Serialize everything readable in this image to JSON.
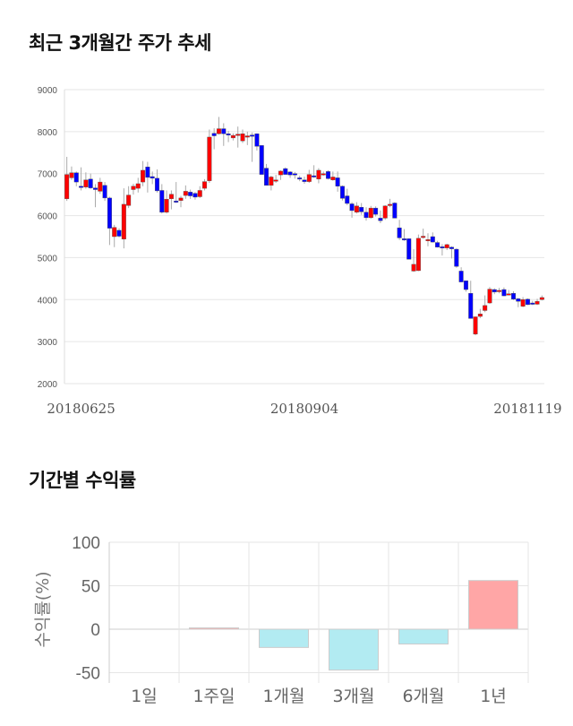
{
  "titles": {
    "price_trend": "최근 3개월간 주가 추세",
    "returns": "기간별 수익률"
  },
  "colors": {
    "up": "#ff0000",
    "down": "#0000ff",
    "wick": "#aaaaaa",
    "pos_bar": "#ffa6a6",
    "neg_bar": "#b2ebf2",
    "grid": "#e6e6e6"
  },
  "chart_data": [
    {
      "type": "candlestick",
      "title": "최근 3개월간 주가 추세",
      "ylim": [
        2000,
        9000
      ],
      "yticks": [
        "9000",
        "8000",
        "7000",
        "6000",
        "5000",
        "4000",
        "3000",
        "2000"
      ],
      "xticks": [
        {
          "index": 3,
          "label": "20180625"
        },
        {
          "index": 50,
          "label": "20180904"
        },
        {
          "index": 97,
          "label": "20181119"
        }
      ],
      "candles_ohlc": [
        [
          6400,
          7400,
          6350,
          6980
        ],
        [
          6900,
          7170,
          6850,
          7020
        ],
        [
          7020,
          7050,
          6700,
          6800
        ],
        [
          6700,
          7150,
          6600,
          6680
        ],
        [
          6680,
          7030,
          6640,
          6850
        ],
        [
          6870,
          7000,
          6640,
          6660
        ],
        [
          6660,
          6750,
          6200,
          6620
        ],
        [
          6580,
          6900,
          6520,
          6800
        ],
        [
          6720,
          6800,
          6350,
          6420
        ],
        [
          6420,
          6450,
          5300,
          5700
        ],
        [
          5500,
          5780,
          5250,
          5720
        ],
        [
          5650,
          5700,
          5480,
          5510
        ],
        [
          5440,
          6650,
          5220,
          6270
        ],
        [
          6240,
          6700,
          6180,
          6490
        ],
        [
          6620,
          6760,
          6500,
          6700
        ],
        [
          6650,
          6900,
          6550,
          6760
        ],
        [
          6800,
          7300,
          6700,
          7080
        ],
        [
          7160,
          7280,
          6550,
          6910
        ],
        [
          6930,
          7050,
          6750,
          6890
        ],
        [
          6890,
          7100,
          6550,
          6590
        ],
        [
          6600,
          6750,
          6050,
          6080
        ],
        [
          6080,
          6600,
          6050,
          6390
        ],
        [
          6400,
          6600,
          6150,
          6510
        ],
        [
          6350,
          6800,
          6300,
          6330
        ],
        [
          6360,
          6470,
          6200,
          6420
        ],
        [
          6480,
          6720,
          6400,
          6580
        ],
        [
          6560,
          6620,
          6400,
          6470
        ],
        [
          6530,
          6560,
          6380,
          6440
        ],
        [
          6450,
          6700,
          6420,
          6600
        ],
        [
          6650,
          6870,
          6600,
          6810
        ],
        [
          6830,
          8050,
          6780,
          7870
        ],
        [
          7960,
          8080,
          7580,
          7900
        ],
        [
          7950,
          8350,
          7930,
          8070
        ],
        [
          8070,
          8200,
          7660,
          7950
        ],
        [
          7950,
          8020,
          7750,
          7920
        ],
        [
          7850,
          7960,
          7790,
          7910
        ],
        [
          7920,
          8120,
          7620,
          7940
        ],
        [
          7780,
          8050,
          7730,
          7950
        ],
        [
          7880,
          8000,
          7680,
          7900
        ],
        [
          7920,
          7980,
          7280,
          7910
        ],
        [
          7950,
          7960,
          7550,
          7650
        ],
        [
          7670,
          7670,
          6980,
          6980
        ],
        [
          7130,
          7230,
          6720,
          6720
        ],
        [
          6720,
          6950,
          6600,
          6920
        ],
        [
          6830,
          6970,
          6780,
          6850
        ],
        [
          6970,
          7080,
          6850,
          7060
        ],
        [
          7120,
          7150,
          6980,
          6980
        ],
        [
          7040,
          7060,
          6900,
          6970
        ],
        [
          7000,
          7040,
          6880,
          6970
        ],
        [
          6900,
          6950,
          6820,
          6880
        ],
        [
          6850,
          6930,
          6760,
          6810
        ],
        [
          6810,
          7090,
          6780,
          6980
        ],
        [
          6950,
          7200,
          6900,
          6920
        ],
        [
          6870,
          7130,
          6770,
          7080
        ],
        [
          7000,
          7050,
          6950,
          7000
        ],
        [
          7050,
          7080,
          6860,
          6880
        ],
        [
          6850,
          7050,
          6830,
          6920
        ],
        [
          6900,
          7050,
          6570,
          6700
        ],
        [
          6700,
          6720,
          6360,
          6410
        ],
        [
          6470,
          6640,
          6250,
          6290
        ],
        [
          6280,
          6320,
          5950,
          6120
        ],
        [
          6080,
          6320,
          6050,
          6230
        ],
        [
          6200,
          6300,
          6020,
          6090
        ],
        [
          6080,
          6200,
          5880,
          5950
        ],
        [
          5950,
          6230,
          5930,
          6180
        ],
        [
          6180,
          6220,
          5980,
          6030
        ],
        [
          5940,
          6120,
          5820,
          5880
        ],
        [
          5940,
          6250,
          5900,
          6230
        ],
        [
          6240,
          6400,
          6200,
          6270
        ],
        [
          6300,
          6320,
          5940,
          5940
        ],
        [
          5710,
          5900,
          5420,
          5470
        ],
        [
          5450,
          5680,
          5400,
          5430
        ],
        [
          5450,
          5450,
          4960,
          4960
        ],
        [
          4680,
          5200,
          4660,
          4840
        ],
        [
          4690,
          5550,
          4680,
          5460
        ],
        [
          5480,
          5690,
          5450,
          5510
        ],
        [
          5430,
          5580,
          5270,
          5430
        ],
        [
          5500,
          5600,
          5360,
          5370
        ],
        [
          5360,
          5400,
          5240,
          5250
        ],
        [
          5260,
          5320,
          5050,
          5230
        ],
        [
          5230,
          5330,
          5180,
          5310
        ],
        [
          5250,
          5270,
          4980,
          5210
        ],
        [
          5200,
          5220,
          4760,
          4790
        ],
        [
          4680,
          4770,
          4420,
          4420
        ],
        [
          4450,
          4450,
          4190,
          4240
        ],
        [
          4150,
          4450,
          3550,
          3550
        ],
        [
          3180,
          3600,
          3150,
          3590
        ],
        [
          3600,
          3780,
          3560,
          3660
        ],
        [
          3740,
          4100,
          3700,
          3860
        ],
        [
          3920,
          4300,
          3900,
          4250
        ],
        [
          4240,
          4270,
          4130,
          4180
        ],
        [
          4190,
          4280,
          4150,
          4220
        ],
        [
          4240,
          4290,
          4080,
          4090
        ],
        [
          4140,
          4230,
          4100,
          4140
        ],
        [
          4150,
          4200,
          3990,
          4010
        ],
        [
          4020,
          4040,
          3820,
          3960
        ],
        [
          3840,
          4060,
          3820,
          4000
        ],
        [
          4010,
          4030,
          3870,
          3880
        ],
        [
          3920,
          3970,
          3870,
          3900
        ],
        [
          3890,
          4020,
          3870,
          3960
        ],
        [
          4000,
          4100,
          3980,
          4050
        ]
      ]
    },
    {
      "type": "bar",
      "title": "기간별 수익률",
      "ylabel": "수익률(%)",
      "ylim": [
        -55,
        100
      ],
      "yticks": [
        100,
        50,
        0,
        -50
      ],
      "categories": [
        "1일",
        "1주일",
        "1개월",
        "3개월",
        "6개월",
        "1년"
      ],
      "values": [
        0,
        1.5,
        -21,
        -47,
        -17,
        56
      ]
    }
  ]
}
